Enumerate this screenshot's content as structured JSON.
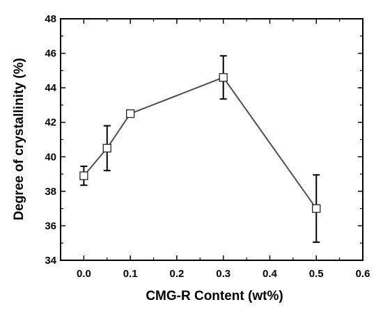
{
  "chart_data": {
    "type": "line",
    "title": "",
    "xlabel": "CMG-R Content (wt%)",
    "ylabel": "Degree of crystallinity (%)",
    "xlim": [
      -0.05,
      0.6
    ],
    "ylim": [
      34,
      48
    ],
    "x_ticks": [
      "0.0",
      "0.1",
      "0.2",
      "0.3",
      "0.4",
      "0.5",
      "0.6"
    ],
    "y_ticks": [
      "34",
      "36",
      "38",
      "40",
      "42",
      "44",
      "46",
      "48"
    ],
    "grid": false,
    "legend": "none",
    "series": [
      {
        "x": [
          0.0,
          0.05,
          0.1,
          0.3,
          0.5
        ],
        "y": [
          38.9,
          40.5,
          42.5,
          44.6,
          37.0
        ],
        "error": [
          0.55,
          1.3,
          0.15,
          1.25,
          1.95
        ],
        "marker": "open-square",
        "line_color": "#505050",
        "marker_fill": "#ffffff",
        "error_color": "#000000"
      }
    ]
  }
}
